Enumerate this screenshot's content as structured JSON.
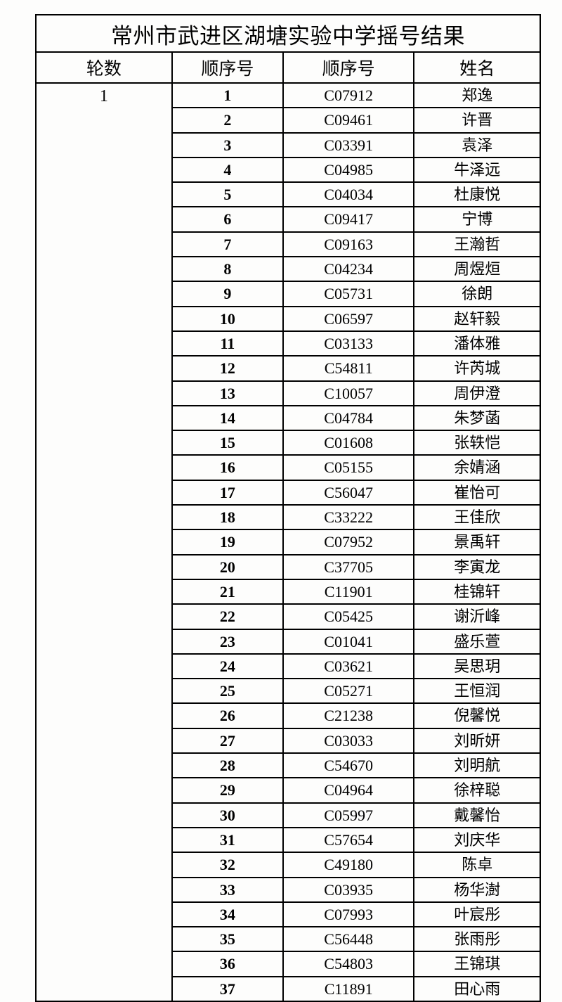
{
  "table": {
    "title": "常州市武进区湖塘实验中学摇号结果",
    "columns": [
      "轮数",
      "顺序号",
      "顺序号",
      "姓名"
    ],
    "round": "1",
    "rows": [
      [
        "1",
        "C07912",
        "郑逸"
      ],
      [
        "2",
        "C09461",
        "许晋"
      ],
      [
        "3",
        "C03391",
        "袁泽"
      ],
      [
        "4",
        "C04985",
        "牛泽远"
      ],
      [
        "5",
        "C04034",
        "杜康悦"
      ],
      [
        "6",
        "C09417",
        "宁博"
      ],
      [
        "7",
        "C09163",
        "王瀚哲"
      ],
      [
        "8",
        "C04234",
        "周煜烜"
      ],
      [
        "9",
        "C05731",
        "徐朗"
      ],
      [
        "10",
        "C06597",
        "赵轩毅"
      ],
      [
        "11",
        "C03133",
        "潘体雅"
      ],
      [
        "12",
        "C54811",
        "许芮城"
      ],
      [
        "13",
        "C10057",
        "周伊澄"
      ],
      [
        "14",
        "C04784",
        "朱梦菡"
      ],
      [
        "15",
        "C01608",
        "张轶恺"
      ],
      [
        "16",
        "C05155",
        "余婧涵"
      ],
      [
        "17",
        "C56047",
        "崔怡可"
      ],
      [
        "18",
        "C33222",
        "王佳欣"
      ],
      [
        "19",
        "C07952",
        "景禹轩"
      ],
      [
        "20",
        "C37705",
        "李寅龙"
      ],
      [
        "21",
        "C11901",
        "桂锦轩"
      ],
      [
        "22",
        "C05425",
        "谢沂峰"
      ],
      [
        "23",
        "C01041",
        "盛乐萱"
      ],
      [
        "24",
        "C03621",
        "吴思玥"
      ],
      [
        "25",
        "C05271",
        "王恒润"
      ],
      [
        "26",
        "C21238",
        "倪馨悦"
      ],
      [
        "27",
        "C03033",
        "刘昕妍"
      ],
      [
        "28",
        "C54670",
        "刘明航"
      ],
      [
        "29",
        "C04964",
        "徐梓聪"
      ],
      [
        "30",
        "C05997",
        "戴馨怡"
      ],
      [
        "31",
        "C57654",
        "刘庆华"
      ],
      [
        "32",
        "C49180",
        "陈卓"
      ],
      [
        "33",
        "C03935",
        "杨华澍"
      ],
      [
        "34",
        "C07993",
        "叶宸彤"
      ],
      [
        "35",
        "C56448",
        "张雨彤"
      ],
      [
        "36",
        "C54803",
        "王锦琪"
      ],
      [
        "37",
        "C11891",
        "田心雨"
      ]
    ],
    "title_fontsize": 31,
    "header_fontsize": 25,
    "data_fontsize": 22,
    "border_color": "#000000",
    "background_color": "#fdfdfc",
    "text_color": "#000000"
  }
}
